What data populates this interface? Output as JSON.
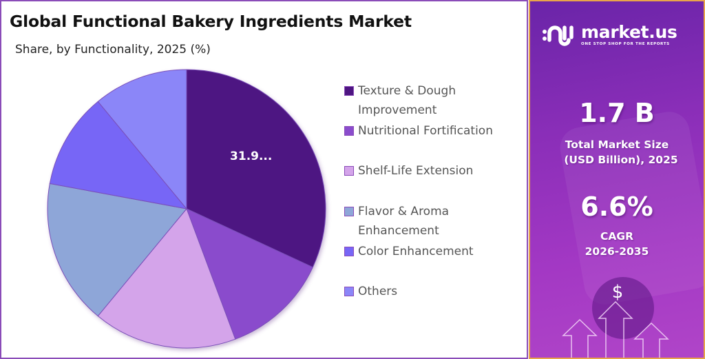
{
  "header": {
    "title": "Global Functional Bakery Ingredients Market",
    "subtitle": "Share, by Functionality, 2025 (%)"
  },
  "legend": {
    "items": [
      {
        "label_lines": [
          "Texture & Dough",
          "Improvement"
        ],
        "color": "#4e1582"
      },
      {
        "label_lines": [
          "Nutritional Fortification"
        ],
        "color": "#8a4ccc"
      },
      {
        "label_lines": [
          "Shelf-Life Extension"
        ],
        "color": "#d4a4ea"
      },
      {
        "label_lines": [
          "Flavor & Aroma",
          "Enhancement"
        ],
        "color": "#8ea6d8"
      },
      {
        "label_lines": [
          "Color Enhancement"
        ],
        "color": "#7766f6"
      },
      {
        "label_lines": [
          "Others"
        ],
        "color": "#8b86f8"
      }
    ]
  },
  "sidebar": {
    "brand_name": "market.us",
    "brand_tagline": "ONE STOP SHOP FOR THE REPORTS",
    "market_size_value": "1.7 B",
    "market_size_label_1": "Total Market Size",
    "market_size_label_2": "(USD Billion), 2025",
    "cagr_value": "6.6%",
    "cagr_label_1": "CAGR",
    "cagr_label_2": "2026-2035",
    "dollar_symbol": "$"
  },
  "chart_data": {
    "type": "pie",
    "title": "Global Functional Bakery Ingredients Market",
    "subtitle": "Share, by Functionality, 2025 (%)",
    "categories": [
      "Texture & Dough Improvement",
      "Nutritional Fortification",
      "Shelf-Life Extension",
      "Flavor & Aroma Enhancement",
      "Color Enhancement",
      "Others"
    ],
    "values": [
      31.9,
      12.4,
      16.7,
      16.9,
      11.1,
      11.0
    ],
    "colors": [
      "#4e1582",
      "#8a4ccc",
      "#d4a4ea",
      "#8ea6d8",
      "#7766f6",
      "#8b86f8"
    ],
    "data_labels": [
      "31.9...",
      "",
      "",
      "",
      "",
      ""
    ],
    "start_angle_deg": 0,
    "direction": "clockwise",
    "legend_position": "right",
    "center": [
      269,
      301
    ],
    "radius": 202
  }
}
